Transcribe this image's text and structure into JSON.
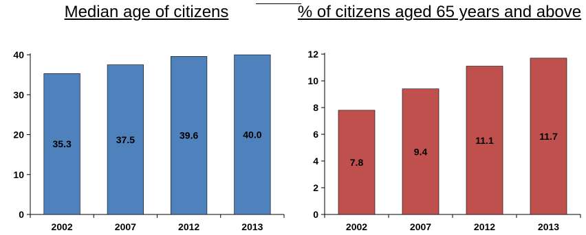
{
  "chart_data": [
    {
      "type": "bar",
      "title": "Median age of citizens",
      "categories": [
        "2002",
        "2007",
        "2012",
        "2013"
      ],
      "values": [
        35.3,
        37.5,
        39.6,
        40.0
      ],
      "data_labels": [
        "35.3",
        "37.5",
        "39.6",
        "40.0"
      ],
      "ylim": [
        0,
        40
      ],
      "yticks": [
        0,
        10,
        20,
        30,
        40
      ],
      "xlabel": "",
      "ylabel": "",
      "grid": false,
      "legend": "none",
      "bar_color": "#4F81BD"
    },
    {
      "type": "bar",
      "title": "% of citizens  aged 65 years and above",
      "categories": [
        "2002",
        "2007",
        "2012",
        "2013"
      ],
      "values": [
        7.8,
        9.4,
        11.1,
        11.7
      ],
      "data_labels": [
        "7.8",
        "9.4",
        "11.1",
        "11.7"
      ],
      "ylim": [
        0,
        12
      ],
      "yticks": [
        0,
        2,
        4,
        6,
        8,
        10,
        12
      ],
      "xlabel": "",
      "ylabel": "",
      "grid": false,
      "legend": "none",
      "bar_color": "#C0504D"
    }
  ]
}
